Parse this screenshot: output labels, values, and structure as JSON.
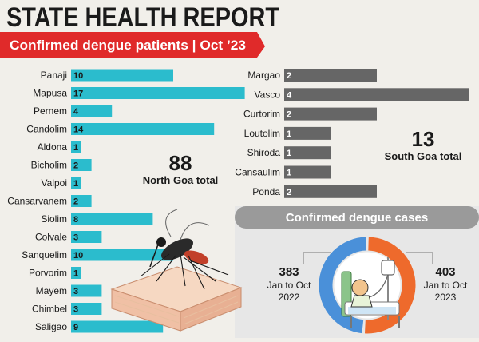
{
  "header": {
    "title": "STATE HEALTH REPORT",
    "banner": "Confirmed dengue patients | Oct ’23"
  },
  "north": {
    "total_value": "88",
    "total_label": "North Goa total"
  },
  "south": {
    "total_value": "13",
    "total_label": "South Goa total"
  },
  "cases": {
    "heading": "Confirmed dengue cases",
    "left_value": "383",
    "left_line1": "Jan to Oct",
    "left_line2": "2022",
    "right_value": "403",
    "right_line1": "Jan to Oct",
    "right_line2": "2023"
  },
  "colors": {
    "north_bar": "#2bbccd",
    "south_bar": "#666666",
    "banner": "#e02a2a",
    "donut_2022": "#4a90d9",
    "donut_2023": "#ee6a2c",
    "panel": "#e7e7e7",
    "panel_heading": "#9a9a9a"
  },
  "chart_data": [
    {
      "type": "bar",
      "orientation": "horizontal",
      "categories": [
        "Panaji",
        "Mapusa",
        "Pernem",
        "Candolim",
        "Aldona",
        "Bicholim",
        "Valpoi",
        "Cansarvanem",
        "Siolim",
        "Colvale",
        "Sanquelim",
        "Porvorim",
        "Mayem",
        "Chimbel",
        "Saligao"
      ],
      "values": [
        10,
        17,
        4,
        14,
        1,
        2,
        1,
        2,
        8,
        3,
        10,
        1,
        3,
        3,
        9
      ]
    },
    {
      "type": "bar",
      "orientation": "horizontal",
      "categories": [
        "Margao",
        "Vasco",
        "Curtorim",
        "Loutolim",
        "Shiroda",
        "Cansaulim",
        "Ponda"
      ],
      "values": [
        2,
        4,
        2,
        1,
        1,
        1,
        2
      ]
    },
    {
      "type": "pie",
      "categories": [
        "Jan to Oct 2022",
        "Jan to Oct 2023"
      ],
      "values": [
        383,
        403
      ]
    }
  ]
}
